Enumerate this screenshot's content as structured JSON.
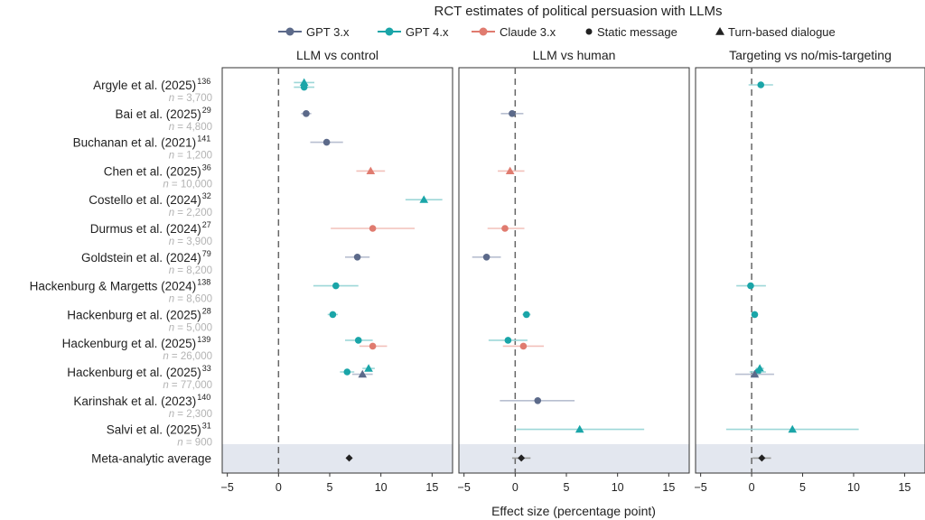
{
  "title": "RCT estimates of political persuasion with LLMs",
  "legend": {
    "items": [
      {
        "label": "GPT 3.x",
        "color": "#5c6a8a",
        "shape": "line-circle"
      },
      {
        "label": "GPT 4.x",
        "color": "#1aa5a8",
        "shape": "line-circle"
      },
      {
        "label": "Claude 3.x",
        "color": "#e07b6f",
        "shape": "line-circle"
      },
      {
        "label": "Static message",
        "color": "#222222",
        "shape": "circle"
      },
      {
        "label": "Turn-based dialogue",
        "color": "#222222",
        "shape": "triangle"
      }
    ]
  },
  "xlabel": "Effect size (percentage point)",
  "chart_data": {
    "type": "forest",
    "panels": [
      "LLM vs control",
      "LLM vs human",
      "Targeting vs no/mis-targeting"
    ],
    "xlim": [
      -5.5,
      17
    ],
    "xticks": [
      -5,
      0,
      5,
      10,
      15
    ],
    "reference_line": 0,
    "meta_row_shaded": true,
    "colors": {
      "GPT 3.x": "#5c6a8a",
      "GPT 4.x": "#1aa5a8",
      "Claude 3.x": "#e07b6f",
      "meta": "#222222"
    },
    "studies": [
      {
        "label": "Argyle et al. (2025)",
        "ref": "136",
        "n": "3,700"
      },
      {
        "label": "Bai et al. (2025)",
        "ref": "29",
        "n": "4,800"
      },
      {
        "label": "Buchanan et al. (2021)",
        "ref": "141",
        "n": "1,200"
      },
      {
        "label": "Chen et al. (2025)",
        "ref": "36",
        "n": "10,000"
      },
      {
        "label": "Costello et al. (2024)",
        "ref": "32",
        "n": "2,200"
      },
      {
        "label": "Durmus et al. (2024)",
        "ref": "27",
        "n": "3,900"
      },
      {
        "label": "Goldstein et al. (2024)",
        "ref": "79",
        "n": "8,200"
      },
      {
        "label": "Hackenburg & Margetts (2024)",
        "ref": "138",
        "n": "8,600"
      },
      {
        "label": "Hackenburg et al. (2025)",
        "ref": "28",
        "n": "5,000"
      },
      {
        "label": "Hackenburg et al. (2025)",
        "ref": "139",
        "n": "26,000"
      },
      {
        "label": "Hackenburg et al. (2025)",
        "ref": "33",
        "n": "77,000"
      },
      {
        "label": "Karinshak et al. (2023)",
        "ref": "140",
        "n": "2,300"
      },
      {
        "label": "Salvi et al. (2025)",
        "ref": "31",
        "n": "900"
      },
      {
        "label": "Meta-analytic average",
        "ref": "",
        "n": ""
      }
    ],
    "estimates": [
      {
        "panel": 0,
        "row": 0,
        "offset": -0.2,
        "model": "GPT 4.x",
        "format": "dialogue",
        "est": 2.5,
        "lo": 1.5,
        "hi": 3.5
      },
      {
        "panel": 0,
        "row": 0,
        "offset": 0.2,
        "model": "GPT 4.x",
        "format": "static",
        "est": 2.5,
        "lo": 1.5,
        "hi": 3.5
      },
      {
        "panel": 0,
        "row": 1,
        "offset": 0,
        "model": "GPT 3.x",
        "format": "static",
        "est": 2.7,
        "lo": 2.2,
        "hi": 3.2
      },
      {
        "panel": 0,
        "row": 2,
        "offset": 0,
        "model": "GPT 3.x",
        "format": "static",
        "est": 4.7,
        "lo": 3.1,
        "hi": 6.3
      },
      {
        "panel": 0,
        "row": 3,
        "offset": 0,
        "model": "Claude 3.x",
        "format": "dialogue",
        "est": 9.0,
        "lo": 7.6,
        "hi": 10.4
      },
      {
        "panel": 0,
        "row": 4,
        "offset": 0,
        "model": "GPT 4.x",
        "format": "dialogue",
        "est": 14.2,
        "lo": 12.4,
        "hi": 16.0
      },
      {
        "panel": 0,
        "row": 5,
        "offset": 0,
        "model": "Claude 3.x",
        "format": "static",
        "est": 9.2,
        "lo": 5.1,
        "hi": 13.3
      },
      {
        "panel": 0,
        "row": 6,
        "offset": 0,
        "model": "GPT 3.x",
        "format": "static",
        "est": 7.7,
        "lo": 6.5,
        "hi": 8.9
      },
      {
        "panel": 0,
        "row": 7,
        "offset": 0,
        "model": "GPT 4.x",
        "format": "static",
        "est": 5.6,
        "lo": 3.4,
        "hi": 7.8
      },
      {
        "panel": 0,
        "row": 8,
        "offset": 0,
        "model": "GPT 4.x",
        "format": "static",
        "est": 5.3,
        "lo": 4.8,
        "hi": 5.8
      },
      {
        "panel": 0,
        "row": 9,
        "offset": -0.25,
        "model": "GPT 4.x",
        "format": "static",
        "est": 7.8,
        "lo": 6.5,
        "hi": 9.2
      },
      {
        "panel": 0,
        "row": 9,
        "offset": 0.25,
        "model": "Claude 3.x",
        "format": "static",
        "est": 9.2,
        "lo": 7.9,
        "hi": 10.6
      },
      {
        "panel": 0,
        "row": 10,
        "offset": -0.3,
        "model": "GPT 4.x",
        "format": "dialogue",
        "est": 8.8,
        "lo": 8.2,
        "hi": 9.4
      },
      {
        "panel": 0,
        "row": 10,
        "offset": 0,
        "model": "GPT 4.x",
        "format": "static",
        "est": 6.7,
        "lo": 6.0,
        "hi": 7.4
      },
      {
        "panel": 0,
        "row": 10,
        "offset": 0.2,
        "model": "GPT 3.x",
        "format": "dialogue",
        "est": 8.2,
        "lo": 7.2,
        "hi": 9.2
      },
      {
        "panel": 0,
        "row": 13,
        "offset": 0,
        "model": "meta",
        "format": "diamond",
        "est": 6.9,
        "lo": 6.6,
        "hi": 7.2
      },
      {
        "panel": 1,
        "row": 1,
        "offset": 0,
        "model": "GPT 3.x",
        "format": "static",
        "est": -0.3,
        "lo": -1.4,
        "hi": 0.8
      },
      {
        "panel": 1,
        "row": 3,
        "offset": 0,
        "model": "Claude 3.x",
        "format": "dialogue",
        "est": -0.5,
        "lo": -1.7,
        "hi": 0.9
      },
      {
        "panel": 1,
        "row": 5,
        "offset": 0,
        "model": "Claude 3.x",
        "format": "static",
        "est": -1.0,
        "lo": -2.7,
        "hi": 0.9
      },
      {
        "panel": 1,
        "row": 6,
        "offset": 0,
        "model": "GPT 3.x",
        "format": "static",
        "est": -2.8,
        "lo": -4.2,
        "hi": -1.4
      },
      {
        "panel": 1,
        "row": 8,
        "offset": 0,
        "model": "GPT 4.x",
        "format": "static",
        "est": 1.1,
        "lo": 0.7,
        "hi": 1.5
      },
      {
        "panel": 1,
        "row": 9,
        "offset": -0.25,
        "model": "GPT 4.x",
        "format": "static",
        "est": -0.7,
        "lo": -2.6,
        "hi": 1.2
      },
      {
        "panel": 1,
        "row": 9,
        "offset": 0.25,
        "model": "Claude 3.x",
        "format": "static",
        "est": 0.8,
        "lo": -1.2,
        "hi": 2.8
      },
      {
        "panel": 1,
        "row": 11,
        "offset": 0,
        "model": "GPT 3.x",
        "format": "static",
        "est": 2.2,
        "lo": -1.5,
        "hi": 5.8
      },
      {
        "panel": 1,
        "row": 12,
        "offset": 0,
        "model": "GPT 4.x",
        "format": "dialogue",
        "est": 6.3,
        "lo": 0.1,
        "hi": 12.6
      },
      {
        "panel": 1,
        "row": 13,
        "offset": 0,
        "model": "meta",
        "format": "diamond",
        "est": 0.6,
        "lo": -0.3,
        "hi": 1.5
      },
      {
        "panel": 2,
        "row": 0,
        "offset": 0,
        "model": "GPT 4.x",
        "format": "static",
        "est": 0.9,
        "lo": -0.3,
        "hi": 2.1
      },
      {
        "panel": 2,
        "row": 7,
        "offset": 0,
        "model": "GPT 4.x",
        "format": "static",
        "est": -0.1,
        "lo": -1.5,
        "hi": 1.4
      },
      {
        "panel": 2,
        "row": 8,
        "offset": 0,
        "model": "GPT 4.x",
        "format": "static",
        "est": 0.3,
        "lo": 0.0,
        "hi": 0.6
      },
      {
        "panel": 2,
        "row": 10,
        "offset": -0.3,
        "model": "GPT 4.x",
        "format": "dialogue",
        "est": 0.8,
        "lo": 0.4,
        "hi": 1.2
      },
      {
        "panel": 2,
        "row": 10,
        "offset": 0,
        "model": "GPT 4.x",
        "format": "static",
        "est": 0.6,
        "lo": -0.2,
        "hi": 1.4
      },
      {
        "panel": 2,
        "row": 10,
        "offset": 0.2,
        "model": "GPT 3.x",
        "format": "dialogue",
        "est": 0.3,
        "lo": -1.6,
        "hi": 2.2
      },
      {
        "panel": 2,
        "row": 12,
        "offset": 0,
        "model": "GPT 4.x",
        "format": "dialogue",
        "est": 4.0,
        "lo": -2.5,
        "hi": 10.5
      },
      {
        "panel": 2,
        "row": 13,
        "offset": 0,
        "model": "meta",
        "format": "diamond",
        "est": 1.0,
        "lo": 0.1,
        "hi": 1.9
      }
    ]
  }
}
